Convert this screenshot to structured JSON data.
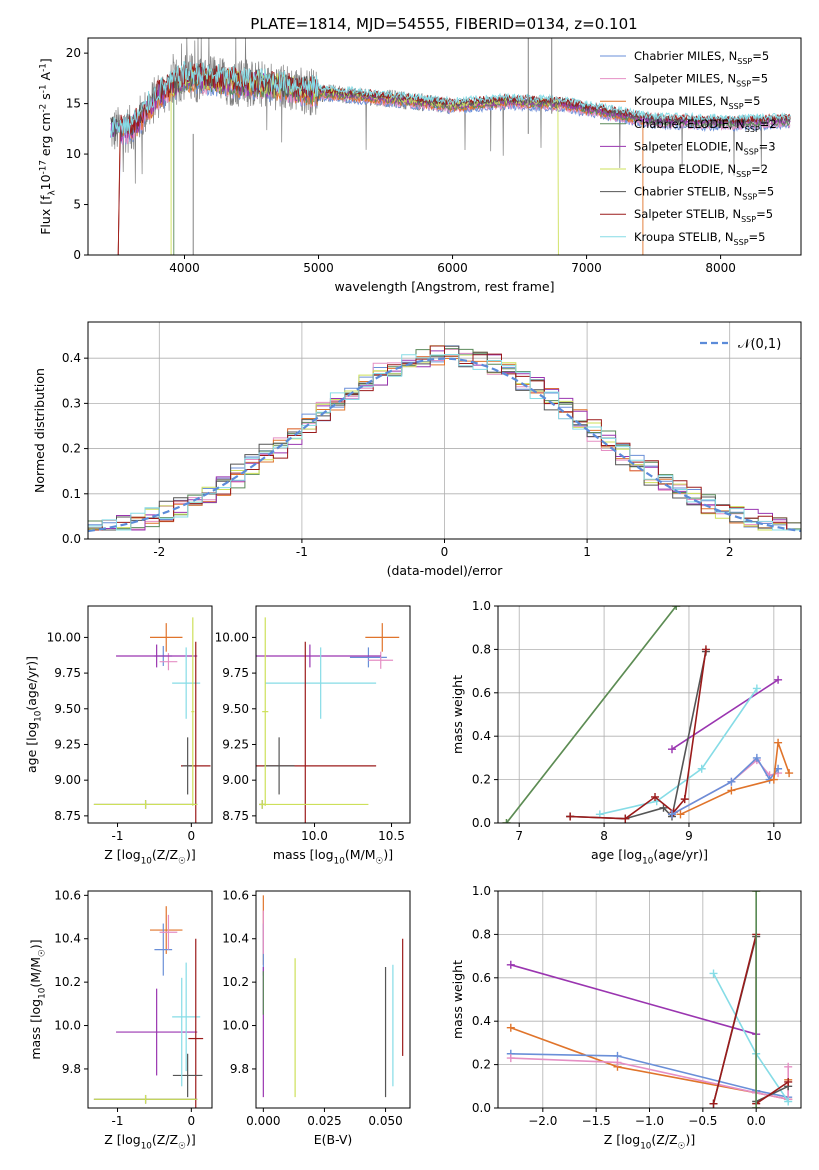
{
  "figure_title": "PLATE=1814, MJD=54555, FIBERID=0134, z=0.101",
  "legend_series": [
    {
      "name": "Chabrier MILES, N$_{SSP}$=5",
      "color": "#6a8fd8"
    },
    {
      "name": "Salpeter MILES, N$_{SSP}$=5",
      "color": "#e58fc4"
    },
    {
      "name": "Kroupa MILES, N$_{SSP}$=5",
      "color": "#e0742b"
    },
    {
      "name": "Chabrier ELODIE, N$_{SSP}$=2",
      "color": "#5a8a5a"
    },
    {
      "name": "Salpeter ELODIE, N$_{SSP}$=3",
      "color": "#9a35b0"
    },
    {
      "name": "Kroupa ELODIE, N$_{SSP}$=2",
      "color": "#cde05a"
    },
    {
      "name": "Chabrier STELIB, N$_{SSP}$=5",
      "color": "#555555"
    },
    {
      "name": "Salpeter STELIB, N$_{SSP}$=5",
      "color": "#9b1b1b"
    },
    {
      "name": "Kroupa STELIB, N$_{SSP}$=5",
      "color": "#86dce6"
    }
  ],
  "chart_data": [
    {
      "id": "spectrum",
      "type": "line",
      "xlabel": "wavelength [Angstrom, rest frame]",
      "ylabel": "Flux [f$_\\lambda$10$^{-17}$ erg cm$^{-2}$ s$^{-1}$ A$^{-1}$]",
      "xlim": [
        3280,
        8600
      ],
      "ylim": [
        0,
        21.5
      ],
      "xticks": [
        4000,
        5000,
        6000,
        7000,
        8000
      ],
      "yticks": [
        0,
        5,
        10,
        15,
        20
      ],
      "data_color": "#808080",
      "continuum_knots": {
        "x": [
          3450,
          3600,
          3700,
          3800,
          3900,
          4000,
          4200,
          4400,
          4600,
          4800,
          5000,
          5200,
          5600,
          6000,
          6400,
          6800,
          7200,
          7500,
          7800,
          8100,
          8500
        ],
        "y": [
          12.3,
          12.5,
          14.0,
          15.8,
          16.6,
          17.6,
          17.4,
          17.0,
          16.9,
          16.5,
          16.1,
          15.9,
          15.4,
          14.8,
          15.2,
          15.0,
          14.0,
          13.3,
          13.2,
          13.1,
          13.3
        ]
      }
    },
    {
      "id": "residuals",
      "type": "line",
      "xlabel": "(data-model)/error",
      "ylabel": "Normed distribution",
      "xlim": [
        -2.5,
        2.5
      ],
      "ylim": [
        0,
        0.48
      ],
      "xticks": [
        -2,
        -1,
        0,
        1,
        2
      ],
      "yticks": [
        0.0,
        0.1,
        0.2,
        0.3,
        0.4
      ],
      "legend": "$\\mathcal{N}(0,1)$",
      "gaussian_color": "#5b8bd9",
      "bin_width": 0.1
    },
    {
      "id": "z-age",
      "type": "scatter",
      "xlabel": "Z [log$_{10}$(Z/Z$_\\odot$)]",
      "ylabel": "age  [log$_{10}$(age/yr)]",
      "xlim": [
        -1.4,
        0.28
      ],
      "ylim": [
        8.7,
        10.22
      ],
      "xticks": [
        -1,
        0
      ],
      "yticks": [
        8.75,
        9.0,
        9.25,
        9.5,
        9.75,
        10.0
      ],
      "points": [
        {
          "x": -0.34,
          "y": 10.0,
          "xerr": 0.22,
          "yerr": 0.1,
          "color": "#e0742b"
        },
        {
          "x": -0.38,
          "y": 9.87,
          "xerr": 0.12,
          "yerr": 0.07,
          "color": "#6a8fd8"
        },
        {
          "x": -0.31,
          "y": 9.83,
          "xerr": 0.12,
          "yerr": 0.06,
          "color": "#e58fc4"
        },
        {
          "x": -0.47,
          "y": 9.87,
          "xerr": 0.55,
          "yerr": 0.08,
          "color": "#9a35b0"
        },
        {
          "x": -0.07,
          "y": 9.68,
          "xerr": 0.19,
          "yerr": 0.25,
          "color": "#86dce6"
        },
        {
          "x": 0.06,
          "y": 9.1,
          "xerr": 0.2,
          "yerr": 0.87,
          "color": "#9b1b1b"
        },
        {
          "x": -0.05,
          "y": 9.1,
          "xerr": 0.07,
          "yerr": 0.2,
          "color": "#555555"
        },
        {
          "x": -0.62,
          "y": 8.83,
          "xerr": 0.7,
          "yerr": 0.03,
          "color": "#555555"
        },
        {
          "x": -0.62,
          "y": 8.83,
          "xerr": 0.7,
          "yerr": 0.03,
          "color": "#cde05a"
        },
        {
          "x": 0.02,
          "y": 9.48,
          "xerr": 0.02,
          "yerr": 0.66,
          "color": "#cde05a"
        }
      ]
    },
    {
      "id": "mass-age",
      "type": "scatter",
      "xlabel": "mass [log$_{10}$(M/M$_\\odot$)]",
      "ylabel": "",
      "xlim": [
        9.62,
        10.62
      ],
      "ylim": [
        8.7,
        10.22
      ],
      "xticks": [
        10.0,
        10.5
      ],
      "yticks": [
        8.75,
        9.0,
        9.25,
        9.5,
        9.75,
        10.0
      ],
      "points": [
        {
          "x": 10.44,
          "y": 10.0,
          "xerr": 0.11,
          "yerr": 0.1,
          "color": "#e0742b"
        },
        {
          "x": 10.35,
          "y": 9.86,
          "xerr": 0.12,
          "yerr": 0.07,
          "color": "#6a8fd8"
        },
        {
          "x": 10.43,
          "y": 9.84,
          "xerr": 0.08,
          "yerr": 0.06,
          "color": "#e58fc4"
        },
        {
          "x": 9.97,
          "y": 9.87,
          "xerr": 0.46,
          "yerr": 0.08,
          "color": "#9a35b0"
        },
        {
          "x": 10.04,
          "y": 9.68,
          "xerr": 0.36,
          "yerr": 0.25,
          "color": "#86dce6"
        },
        {
          "x": 9.94,
          "y": 9.1,
          "xerr": 0.46,
          "yerr": 0.87,
          "color": "#9b1b1b"
        },
        {
          "x": 9.77,
          "y": 9.1,
          "xerr": 0.1,
          "yerr": 0.2,
          "color": "#555555"
        },
        {
          "x": 9.66,
          "y": 8.83,
          "xerr": 0.02,
          "yerr": 0.03,
          "color": "#555555"
        },
        {
          "x": 9.66,
          "y": 8.83,
          "xerr": 0.02,
          "yerr": 0.03,
          "color": "#cde05a"
        },
        {
          "x": 9.68,
          "y": 9.48,
          "xerr": 0.02,
          "yerr": 0.66,
          "color": "#cde05a"
        }
      ],
      "hlines": [
        {
          "y": 8.83,
          "x0": 9.66,
          "x1": 10.35,
          "color": "#cde05a"
        }
      ]
    },
    {
      "id": "age-weight",
      "type": "line",
      "xlabel": "age  [log$_{10}$(age/yr)]",
      "ylabel": "mass weight",
      "xlim": [
        6.75,
        10.32
      ],
      "ylim": [
        0,
        1.0
      ],
      "xticks": [
        7,
        8,
        9,
        10
      ],
      "yticks": [
        0.0,
        0.2,
        0.4,
        0.6,
        0.8,
        1.0
      ],
      "series": [
        {
          "color": "#cde05a",
          "x": [
            6.85,
            8.85
          ],
          "y": [
            0.0,
            1.0
          ]
        },
        {
          "color": "#5a8a5a",
          "x": [
            6.85,
            8.85
          ],
          "y": [
            0.0,
            1.0
          ]
        },
        {
          "color": "#9a35b0",
          "x": [
            8.8,
            10.05
          ],
          "y": [
            0.34,
            0.66
          ]
        },
        {
          "color": "#86dce6",
          "x": [
            7.95,
            8.62,
            9.15,
            9.8
          ],
          "y": [
            0.04,
            0.1,
            0.25,
            0.62
          ]
        },
        {
          "color": "#555555",
          "x": [
            7.6,
            8.25,
            8.7,
            8.8,
            9.2
          ],
          "y": [
            0.03,
            0.02,
            0.07,
            0.03,
            0.79
          ]
        },
        {
          "color": "#9b1b1b",
          "x": [
            7.6,
            8.25,
            8.6,
            8.82,
            8.95,
            9.2
          ],
          "y": [
            0.03,
            0.02,
            0.12,
            0.05,
            0.11,
            0.8
          ]
        },
        {
          "color": "#e58fc4",
          "x": [
            8.8,
            9.5,
            9.8,
            9.95,
            10.05
          ],
          "y": [
            0.04,
            0.19,
            0.29,
            0.22,
            0.23
          ]
        },
        {
          "color": "#6a8fd8",
          "x": [
            8.8,
            9.5,
            9.8,
            9.95,
            10.05
          ],
          "y": [
            0.04,
            0.19,
            0.3,
            0.2,
            0.25
          ]
        },
        {
          "color": "#e0742b",
          "x": [
            8.9,
            9.5,
            10.0,
            10.05,
            10.18
          ],
          "y": [
            0.04,
            0.15,
            0.2,
            0.37,
            0.23
          ]
        }
      ]
    },
    {
      "id": "z-mass",
      "type": "scatter",
      "xlabel": "Z [log$_{10}$(Z/Z$_\\odot$)]",
      "ylabel": "mass [log$_{10}$(M/M$_\\odot$)]",
      "xlim": [
        -1.4,
        0.28
      ],
      "ylim": [
        9.62,
        10.62
      ],
      "xticks": [
        -1,
        0
      ],
      "yticks": [
        9.8,
        10.0,
        10.2,
        10.4,
        10.6
      ],
      "points": [
        {
          "x": -0.34,
          "y": 10.44,
          "xerr": 0.22,
          "yerr": 0.11,
          "color": "#e0742b"
        },
        {
          "x": -0.38,
          "y": 10.35,
          "xerr": 0.12,
          "yerr": 0.12,
          "color": "#6a8fd8"
        },
        {
          "x": -0.31,
          "y": 10.43,
          "xerr": 0.12,
          "yerr": 0.08,
          "color": "#e58fc4"
        },
        {
          "x": -0.47,
          "y": 9.97,
          "xerr": 0.55,
          "yerr": 0.2,
          "color": "#9a35b0"
        },
        {
          "x": -0.07,
          "y": 10.04,
          "xerr": 0.19,
          "yerr": 0.25,
          "color": "#86dce6"
        },
        {
          "x": 0.06,
          "y": 9.94,
          "xerr": 0.1,
          "yerr": 0.46,
          "color": "#9b1b1b"
        },
        {
          "x": -0.05,
          "y": 9.77,
          "xerr": 0.2,
          "yerr": 0.1,
          "color": "#555555"
        },
        {
          "x": -0.62,
          "y": 9.66,
          "xerr": 0.7,
          "yerr": 0.02,
          "color": "#555555"
        },
        {
          "x": -0.62,
          "y": 9.66,
          "xerr": 0.7,
          "yerr": 0.02,
          "color": "#cde05a"
        },
        {
          "x": -0.13,
          "y": 9.97,
          "xerr": 0.01,
          "yerr": 0.25,
          "color": "#86dce6"
        }
      ]
    },
    {
      "id": "ebv-mass",
      "type": "scatter",
      "xlabel": "E(B-V)",
      "ylabel": "",
      "xlim": [
        -0.003,
        0.06
      ],
      "ylim": [
        9.62,
        10.62
      ],
      "xticks": [
        0.0,
        0.025,
        0.05
      ],
      "tick_labels": [
        "0.000",
        "0.025",
        "0.050"
      ],
      "yticks": [
        9.8,
        10.0,
        10.2,
        10.4,
        10.6
      ],
      "points": [
        {
          "x": 0.0,
          "y": 10.44,
          "xerr": 0,
          "yerr": 0.16,
          "color": "#e0742b"
        },
        {
          "x": 0.0,
          "y": 10.35,
          "xerr": 0,
          "yerr": 0.12,
          "color": "#6a8fd8"
        },
        {
          "x": 0.0,
          "y": 10.43,
          "xerr": 0,
          "yerr": 0.1,
          "color": "#e58fc4"
        },
        {
          "x": 0.0,
          "y": 9.97,
          "xerr": 0,
          "yerr": 0.3,
          "color": "#9a35b0"
        },
        {
          "x": 0.013,
          "y": 9.99,
          "xerr": 0,
          "yerr": 0.32,
          "color": "#cde05a"
        },
        {
          "x": 0.05,
          "y": 9.97,
          "xerr": 0,
          "yerr": 0.3,
          "color": "#555555"
        },
        {
          "x": 0.053,
          "y": 10.0,
          "xerr": 0,
          "yerr": 0.28,
          "color": "#86dce6"
        },
        {
          "x": 0.057,
          "y": 10.13,
          "xerr": 0,
          "yerr": 0.27,
          "color": "#9b1b1b"
        },
        {
          "x": 0.0,
          "y": 10.15,
          "xerr": 0,
          "yerr": 0.1,
          "color": "#5a8a5a"
        }
      ]
    },
    {
      "id": "z-weight",
      "type": "line",
      "xlabel": "Z [log$_{10}$(Z/Z$_\\odot$)]",
      "ylabel": "mass weight",
      "xlim": [
        -2.42,
        0.42
      ],
      "ylim": [
        0,
        1.0
      ],
      "xticks": [
        -2.0,
        -1.5,
        -1.0,
        -0.5,
        0.0
      ],
      "yticks": [
        0.0,
        0.2,
        0.4,
        0.6,
        0.8,
        1.0
      ],
      "series": [
        {
          "color": "#9a35b0",
          "x": [
            -2.3,
            0.0
          ],
          "y": [
            0.66,
            0.34
          ]
        },
        {
          "color": "#e0742b",
          "x": [
            -2.3,
            -1.3,
            0.0,
            0.3,
            0.3
          ],
          "y": [
            0.37,
            0.19,
            0.07,
            0.04,
            0.13
          ]
        },
        {
          "color": "#6a8fd8",
          "x": [
            -2.3,
            -1.3,
            0.0,
            0.3
          ],
          "y": [
            0.25,
            0.24,
            0.08,
            0.05
          ]
        },
        {
          "color": "#e58fc4",
          "x": [
            -2.3,
            -1.3,
            0.0,
            0.3,
            0.3
          ],
          "y": [
            0.23,
            0.21,
            0.07,
            0.04,
            0.19
          ]
        },
        {
          "color": "#86dce6",
          "x": [
            -0.4,
            0.0,
            0.3
          ],
          "y": [
            0.62,
            0.25,
            0.03
          ]
        },
        {
          "color": "#cde05a",
          "x": [
            0.0,
            0.0
          ],
          "y": [
            0.0,
            1.0
          ]
        },
        {
          "color": "#555555",
          "x": [
            -0.4,
            0.0,
            0.0,
            0.3
          ],
          "y": [
            0.02,
            0.79,
            0.03,
            0.1
          ]
        },
        {
          "color": "#9b1b1b",
          "x": [
            -0.4,
            0.0,
            0.0,
            0.3
          ],
          "y": [
            0.02,
            0.8,
            0.02,
            0.12
          ]
        },
        {
          "color": "#5a8a5a",
          "x": [
            0.0,
            0.0
          ],
          "y": [
            0.0,
            1.0
          ]
        }
      ]
    }
  ]
}
